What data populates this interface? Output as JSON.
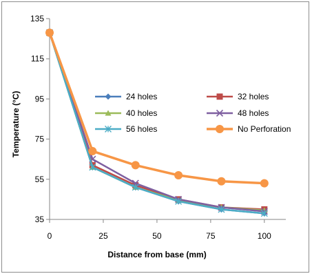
{
  "chart_data": {
    "type": "line",
    "title": "",
    "xlabel": "Distance from base (mm)",
    "ylabel": "Temperature  (°C)",
    "x": [
      0,
      20,
      40,
      60,
      80,
      100
    ],
    "xticks": [
      0,
      25,
      50,
      75,
      100
    ],
    "yticks": [
      35,
      55,
      75,
      95,
      115,
      135
    ],
    "xlim": [
      0,
      110
    ],
    "ylim": [
      35,
      135
    ],
    "grid": false,
    "legend": "inside-center, two columns",
    "series": [
      {
        "name": "24 holes",
        "values": [
          128,
          61,
          51,
          44,
          40,
          38
        ],
        "color": "#4a7ebb",
        "marker": "diamond"
      },
      {
        "name": "32 holes",
        "values": [
          128,
          62,
          52,
          45,
          41,
          40
        ],
        "color": "#be4b48",
        "marker": "square"
      },
      {
        "name": "40 holes",
        "values": [
          128,
          61,
          51,
          44.5,
          41,
          39.5
        ],
        "color": "#9bbb59",
        "marker": "triangle"
      },
      {
        "name": "48 holes",
        "values": [
          128,
          65,
          53,
          45,
          41,
          39
        ],
        "color": "#7e5fa0",
        "marker": "x"
      },
      {
        "name": "56 holes",
        "values": [
          128,
          61,
          51,
          44,
          40,
          38
        ],
        "color": "#4bacc6",
        "marker": "star"
      },
      {
        "name": "No Perforation",
        "values": [
          128,
          69,
          62,
          57,
          54,
          53
        ],
        "color": "#f79646",
        "marker": "circle"
      }
    ]
  }
}
